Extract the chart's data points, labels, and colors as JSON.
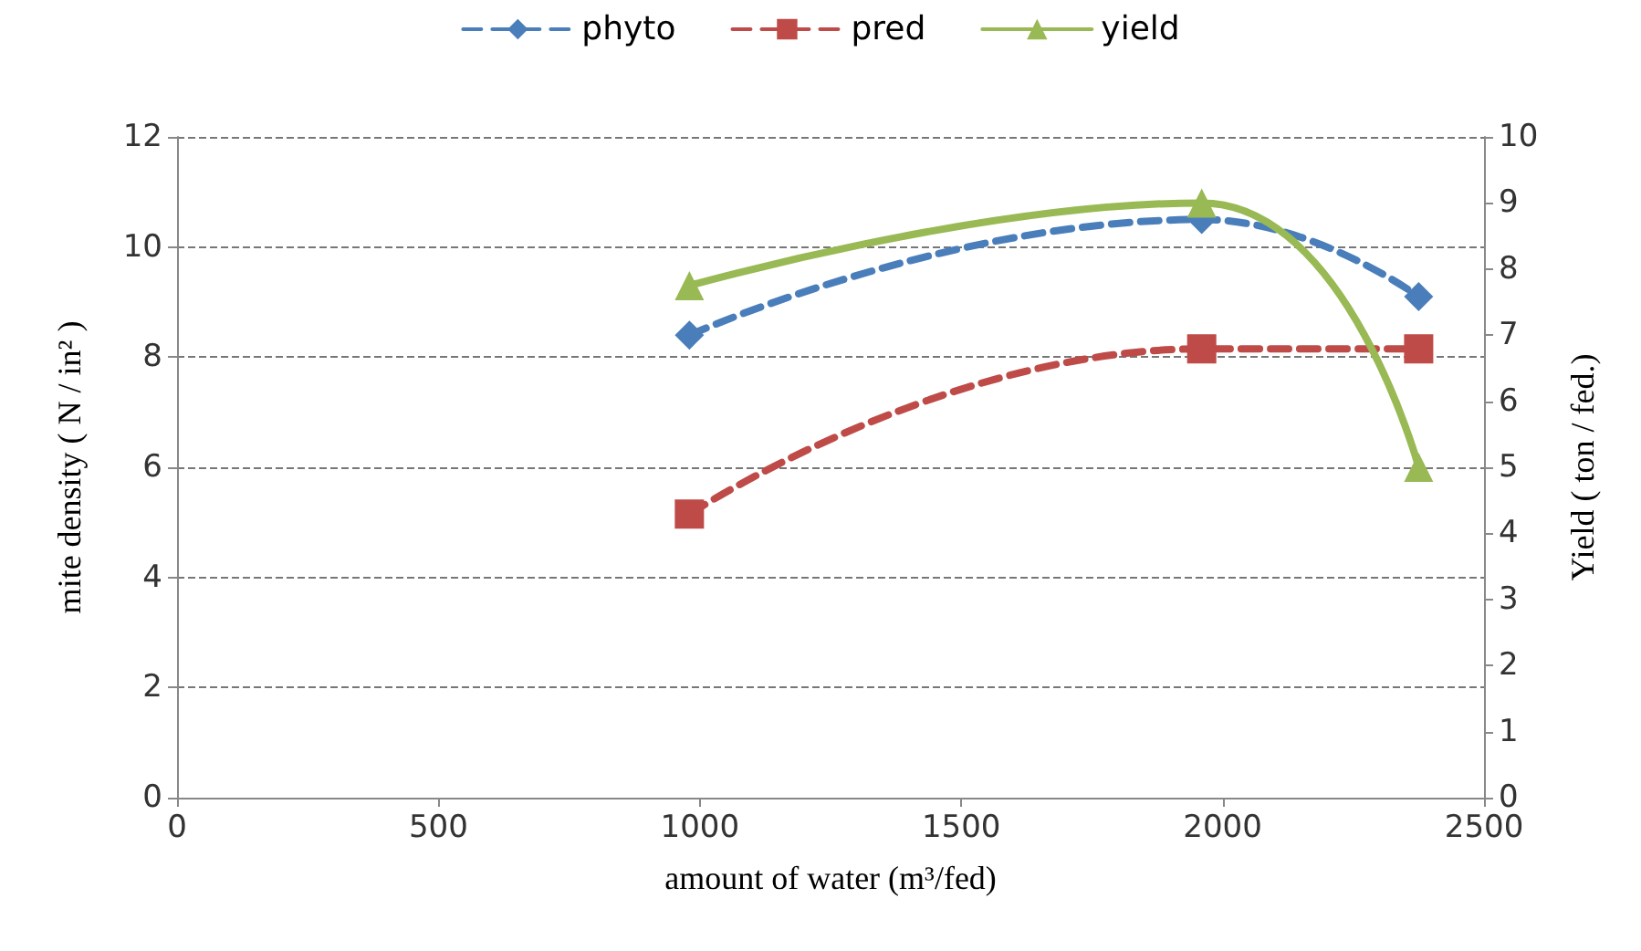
{
  "chart_data": {
    "type": "line",
    "xlabel": "amount of water (m³/fed)",
    "ylabel": "mite density ( N / in² )",
    "y2label": "Yield ( ton / fed.)",
    "xlim": [
      0,
      2500
    ],
    "xticks": [
      0,
      500,
      1000,
      1500,
      2000,
      2500
    ],
    "ylim": [
      0,
      12
    ],
    "yticks": [
      0,
      2,
      4,
      6,
      8,
      10,
      12
    ],
    "y2lim": [
      0,
      10
    ],
    "y2ticks": [
      0,
      1,
      2,
      3,
      4,
      5,
      6,
      7,
      8,
      9,
      10
    ],
    "grid": "y",
    "legend": "top",
    "series": [
      {
        "name": "phyto",
        "color": "#4a7ebb",
        "x": [
          980,
          1960,
          2375
        ],
        "values": [
          8.4,
          10.5,
          9.1
        ],
        "marker": "diamond",
        "line_style": "dashed"
      },
      {
        "name": "pred",
        "color": "#be4b48",
        "x": [
          980,
          1960,
          2375
        ],
        "values": [
          5.15,
          8.15,
          8.15
        ],
        "marker": "square",
        "line_style": "dashed"
      },
      {
        "name": "yield",
        "color": "#98b954",
        "x": [
          980,
          1960,
          2375
        ],
        "values": [
          7.75,
          9.0,
          5.0
        ],
        "marker": "triangle",
        "line_style": "solid",
        "axis": "y2"
      }
    ]
  }
}
